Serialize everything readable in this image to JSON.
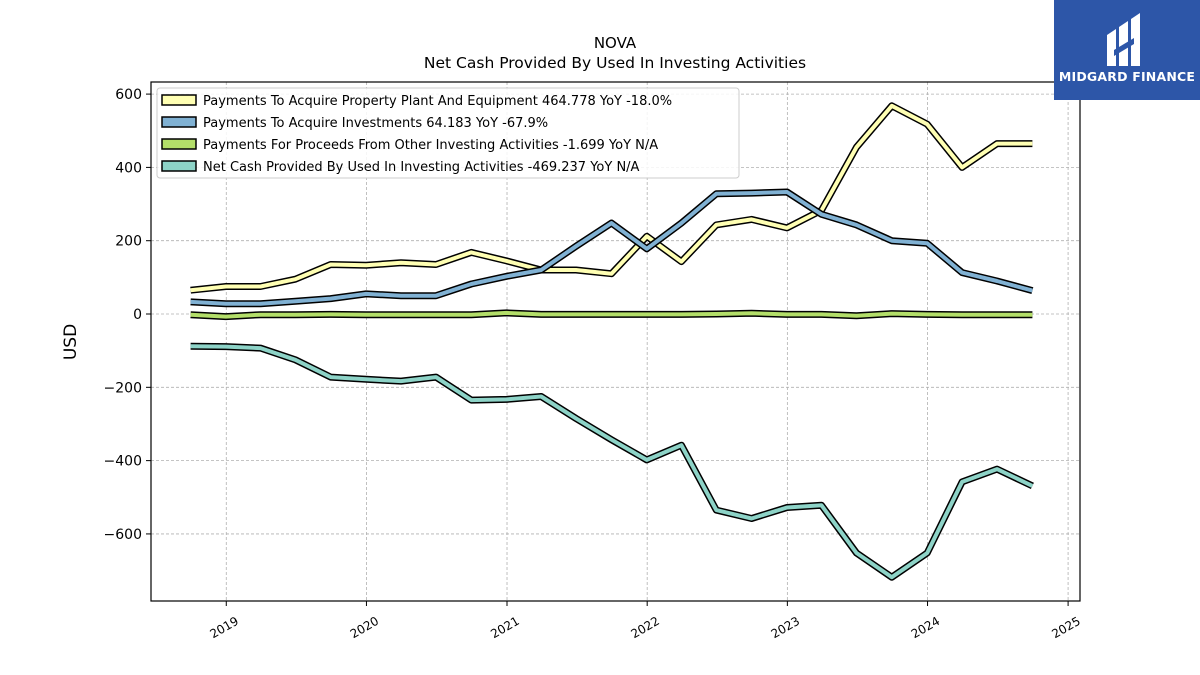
{
  "logo": {
    "text": "MIDGARD FINANCE",
    "background": "#2d56a8"
  },
  "chart_data": {
    "type": "line",
    "title": "NOVA",
    "subtitle": "Net Cash Provided By Used In Investing Activities",
    "xlabel": "",
    "ylabel": "USD",
    "xlim": [
      "2018-06-19",
      "2025-02-01"
    ],
    "ylim": [
      -783,
      633
    ],
    "yticks": [
      600,
      400,
      200,
      0,
      -200,
      -400,
      -600
    ],
    "ytick_labels": [
      "600",
      "400",
      "200",
      "0",
      "−200",
      "−400",
      "−600"
    ],
    "xticks": [
      "2019-01-01",
      "2020-01-01",
      "2021-01-01",
      "2022-01-01",
      "2023-01-01",
      "2024-01-01",
      "2025-01-01"
    ],
    "xtick_labels": [
      "2019",
      "2020",
      "2021",
      "2022",
      "2023",
      "2024",
      "2025"
    ],
    "grid": true,
    "legend_position": "top-left",
    "x": [
      "2018-09-30",
      "2018-12-31",
      "2019-03-31",
      "2019-06-30",
      "2019-09-30",
      "2019-12-31",
      "2020-03-31",
      "2020-06-30",
      "2020-09-30",
      "2020-12-31",
      "2021-03-31",
      "2021-06-30",
      "2021-09-30",
      "2021-12-31",
      "2022-03-31",
      "2022-06-30",
      "2022-09-30",
      "2022-12-31",
      "2023-03-31",
      "2023-06-30",
      "2023-09-30",
      "2023-12-31",
      "2024-03-31",
      "2024-06-30",
      "2024-09-30"
    ],
    "series": [
      {
        "name": "Payments To Acquire Property Plant And Equipment  464.778 YoY -18.0%",
        "color": "#ffffb3",
        "values": [
          65,
          75,
          75,
          95,
          135,
          133,
          140,
          135,
          168,
          145,
          120,
          120,
          110,
          212,
          143,
          243,
          258,
          235,
          283,
          455,
          568,
          518,
          400,
          465,
          465
        ]
      },
      {
        "name": "Payments To Acquire Investments  64.183 YoY -67.9%",
        "color": "#80b1d3",
        "values": [
          33,
          28,
          28,
          35,
          42,
          55,
          50,
          50,
          82,
          103,
          120,
          185,
          248,
          178,
          248,
          328,
          330,
          333,
          272,
          243,
          200,
          193,
          113,
          90,
          64
        ]
      },
      {
        "name": "Payments For Proceeds From Other Investing Activities  -1.699 YoY N/A",
        "color": "#b3de69",
        "values": [
          -2,
          -7,
          -2,
          -2,
          -1,
          -2,
          -2,
          -2,
          -2,
          3,
          -1,
          -1,
          -1,
          -1,
          -1,
          0,
          2,
          -1,
          -1,
          -5,
          1,
          -1,
          -2,
          -2,
          -2
        ]
      },
      {
        "name": "Net Cash Provided By Used In Investing Activities  -469.237 YoY N/A",
        "color": "#8dd3c7",
        "values": [
          -88,
          -89,
          -93,
          -125,
          -172,
          -178,
          -183,
          -172,
          -235,
          -233,
          -225,
          -285,
          -343,
          -398,
          -358,
          -535,
          -558,
          -528,
          -522,
          -652,
          -718,
          -652,
          -458,
          -423,
          -469
        ]
      }
    ]
  }
}
